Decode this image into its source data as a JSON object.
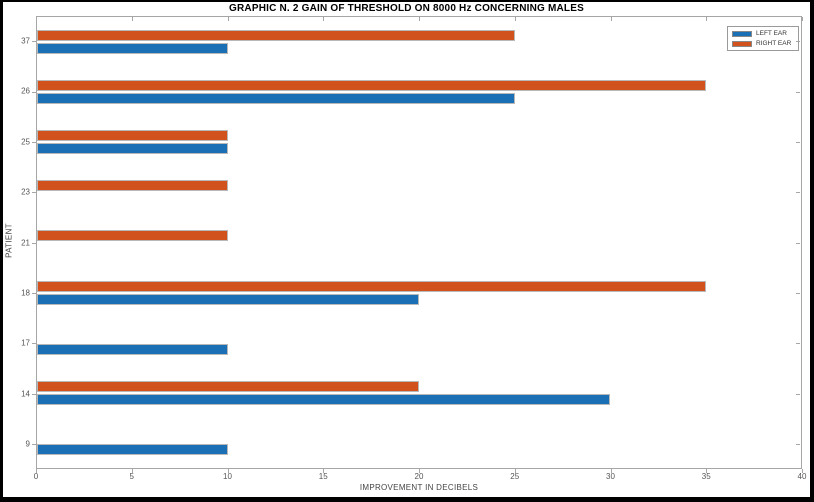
{
  "chart_data": {
    "type": "bar",
    "orientation": "horizontal",
    "title": "GRAPHIC N. 2 GAIN OF THRESHOLD ON 8000 Hz CONCERNING MALES",
    "xlabel": "IMPROVEMENT IN DECIBELS",
    "ylabel": "PATIENT",
    "categories": [
      "37",
      "26",
      "25",
      "23",
      "21",
      "18",
      "17",
      "14",
      "9"
    ],
    "series": [
      {
        "name": "RIGHT EAR",
        "color": "#D2521E",
        "values": [
          25,
          35,
          10,
          10,
          10,
          35,
          0,
          20,
          0
        ]
      },
      {
        "name": "LEFT EAR",
        "color": "#1A6FB5",
        "values": [
          10,
          25,
          10,
          0,
          0,
          20,
          10,
          30,
          10
        ]
      }
    ],
    "xlim": [
      0,
      40
    ],
    "xticks": [
      0,
      5,
      10,
      15,
      20,
      25,
      30,
      35,
      40
    ],
    "grid": false,
    "legend_position": "top-right",
    "legend": [
      {
        "label": "LEFT EAR",
        "color": "#1A6FB5"
      },
      {
        "label": "RIGHT EAR",
        "color": "#D2521E"
      }
    ],
    "colors": {
      "axis": "#a6a6a6",
      "tick_text": "#555555",
      "frame": "#000000"
    }
  }
}
